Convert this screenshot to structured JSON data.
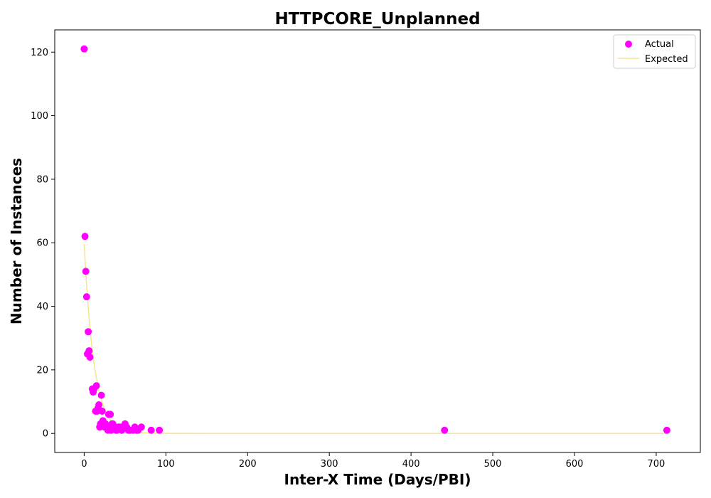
{
  "chart_data": {
    "type": "scatter",
    "title": "HTTPCORE_Unplanned",
    "xlabel": "Inter-X Time (Days/PBI)",
    "ylabel": "Number of Instances",
    "xlim": [
      -36,
      754
    ],
    "ylim": [
      -6,
      127
    ],
    "x_ticks": [
      0,
      100,
      200,
      300,
      400,
      500,
      600,
      700
    ],
    "y_ticks": [
      0,
      20,
      40,
      60,
      80,
      100,
      120
    ],
    "grid": false,
    "legend_position": "top-right",
    "series": [
      {
        "name": "Actual",
        "kind": "scatter",
        "color": "#ff00ff",
        "points": [
          [
            0,
            121
          ],
          [
            1,
            62
          ],
          [
            2,
            51
          ],
          [
            3,
            43
          ],
          [
            5,
            32
          ],
          [
            4,
            25
          ],
          [
            6,
            26
          ],
          [
            7,
            24
          ],
          [
            10,
            14
          ],
          [
            11,
            13
          ],
          [
            12,
            14
          ],
          [
            14,
            7
          ],
          [
            15,
            15
          ],
          [
            16,
            7
          ],
          [
            17,
            8
          ],
          [
            18,
            9
          ],
          [
            19,
            2
          ],
          [
            20,
            3
          ],
          [
            21,
            12
          ],
          [
            22,
            7
          ],
          [
            23,
            4
          ],
          [
            24,
            3
          ],
          [
            25,
            2
          ],
          [
            26,
            3
          ],
          [
            27,
            2
          ],
          [
            28,
            2
          ],
          [
            29,
            1
          ],
          [
            30,
            6
          ],
          [
            31,
            2
          ],
          [
            32,
            6
          ],
          [
            33,
            1
          ],
          [
            34,
            3
          ],
          [
            35,
            3
          ],
          [
            36,
            2
          ],
          [
            38,
            2
          ],
          [
            39,
            1
          ],
          [
            40,
            1
          ],
          [
            42,
            2
          ],
          [
            44,
            2
          ],
          [
            46,
            1
          ],
          [
            48,
            2
          ],
          [
            50,
            3
          ],
          [
            52,
            2
          ],
          [
            54,
            1
          ],
          [
            56,
            1
          ],
          [
            60,
            1
          ],
          [
            62,
            2
          ],
          [
            64,
            1
          ],
          [
            66,
            1
          ],
          [
            70,
            2
          ],
          [
            82,
            1
          ],
          [
            92,
            1
          ],
          [
            441,
            1
          ],
          [
            713,
            1
          ]
        ]
      },
      {
        "name": "Expected",
        "kind": "line",
        "color": "#f0e68c",
        "points": [
          [
            0,
            59.5
          ],
          [
            2,
            50.5
          ],
          [
            4,
            42.8
          ],
          [
            6,
            36.3
          ],
          [
            8,
            30.8
          ],
          [
            10,
            26.1
          ],
          [
            12,
            22.2
          ],
          [
            14,
            18.8
          ],
          [
            16,
            16.0
          ],
          [
            18,
            13.5
          ],
          [
            20,
            11.5
          ],
          [
            25,
            7.6
          ],
          [
            30,
            5.0
          ],
          [
            35,
            3.3
          ],
          [
            40,
            2.2
          ],
          [
            45,
            1.4
          ],
          [
            50,
            0.95
          ],
          [
            60,
            0.42
          ],
          [
            70,
            0.18
          ],
          [
            80,
            0.08
          ],
          [
            100,
            0.02
          ],
          [
            150,
            0
          ],
          [
            300,
            0
          ],
          [
            500,
            0
          ],
          [
            713,
            0
          ]
        ]
      }
    ]
  }
}
